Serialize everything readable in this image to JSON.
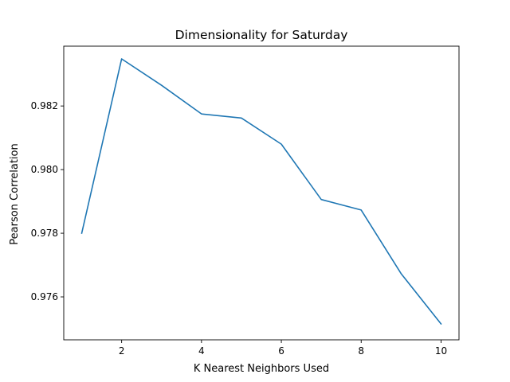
{
  "chart_data": {
    "type": "line",
    "title": "Dimensionality for Saturday",
    "xlabel": "K Nearest Neighbors Used",
    "ylabel": "Pearson Correlation",
    "xlim": [
      0.55,
      10.45
    ],
    "ylim": [
      0.97465,
      0.98388
    ],
    "xticks": [
      2,
      4,
      6,
      8,
      10
    ],
    "xtick_labels": [
      "2",
      "4",
      "6",
      "8",
      "10"
    ],
    "yticks": [
      0.976,
      0.978,
      0.98,
      0.982
    ],
    "ytick_labels": [
      "0.976",
      "0.978",
      "0.980",
      "0.982"
    ],
    "grid": false,
    "series": [
      {
        "color": "#1f77b4",
        "x": [
          1,
          2,
          3,
          4,
          5,
          6,
          7,
          8,
          9,
          10
        ],
        "y": [
          0.978,
          0.98348,
          0.98265,
          0.98175,
          0.98162,
          0.9808,
          0.97906,
          0.97873,
          0.97673,
          0.97515
        ]
      }
    ]
  }
}
